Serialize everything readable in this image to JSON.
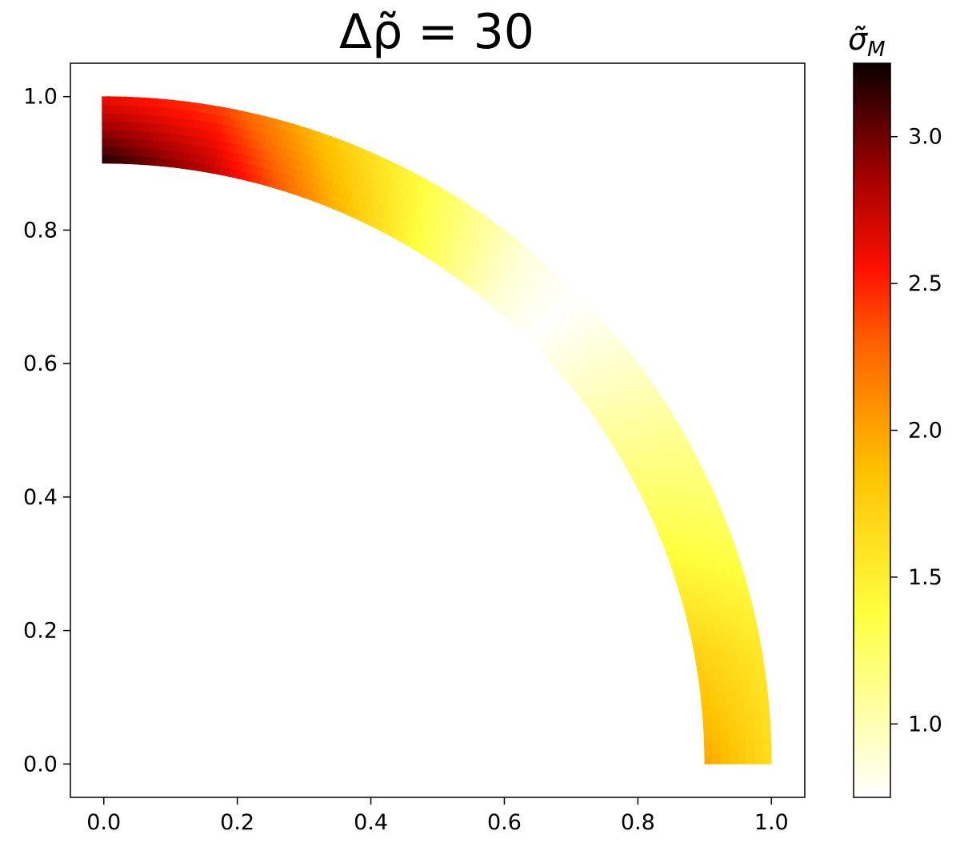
{
  "title": "Δρ̃ = 30",
  "chart_data": {
    "type": "heatmap",
    "title": "Δρ̃ = 30",
    "xlabel": "",
    "ylabel": "",
    "xlim": [
      -0.05,
      1.05
    ],
    "ylim": [
      -0.05,
      1.05
    ],
    "x_ticks": [
      "0.0",
      "0.2",
      "0.4",
      "0.6",
      "0.8",
      "1.0"
    ],
    "y_ticks": [
      "0.0",
      "0.2",
      "0.4",
      "0.6",
      "0.8",
      "1.0"
    ],
    "grid": false,
    "shape": "quarter annulus",
    "inner_radius": 0.9,
    "outer_radius": 1.0,
    "field_samples": {
      "angle_deg": [
        0,
        10,
        20,
        30,
        40,
        45,
        50,
        60,
        70,
        80,
        90
      ],
      "inner_edge": [
        2.0,
        1.75,
        1.4,
        1.15,
        0.9,
        0.75,
        0.9,
        1.45,
        2.1,
        2.8,
        3.2
      ],
      "outer_edge": [
        1.65,
        1.55,
        1.3,
        1.1,
        0.85,
        0.75,
        0.85,
        1.3,
        1.8,
        2.4,
        2.6
      ]
    },
    "colorbar": {
      "label": "σ̃M",
      "label_main": "σ̃",
      "label_sub": "M",
      "colormap": "hot_r",
      "vmin": 0.75,
      "vmax": 3.25,
      "ticks": [
        "1.0",
        "1.5",
        "2.0",
        "2.5",
        "3.0"
      ],
      "stops": [
        {
          "v": 0.0,
          "color": "#ffffff"
        },
        {
          "v": 0.25,
          "color": "#ffff40"
        },
        {
          "v": 0.45,
          "color": "#ffbf00"
        },
        {
          "v": 0.62,
          "color": "#ff6000"
        },
        {
          "v": 0.72,
          "color": "#ff1000"
        },
        {
          "v": 0.85,
          "color": "#a00000"
        },
        {
          "v": 1.0,
          "color": "#0b0000"
        }
      ]
    }
  }
}
